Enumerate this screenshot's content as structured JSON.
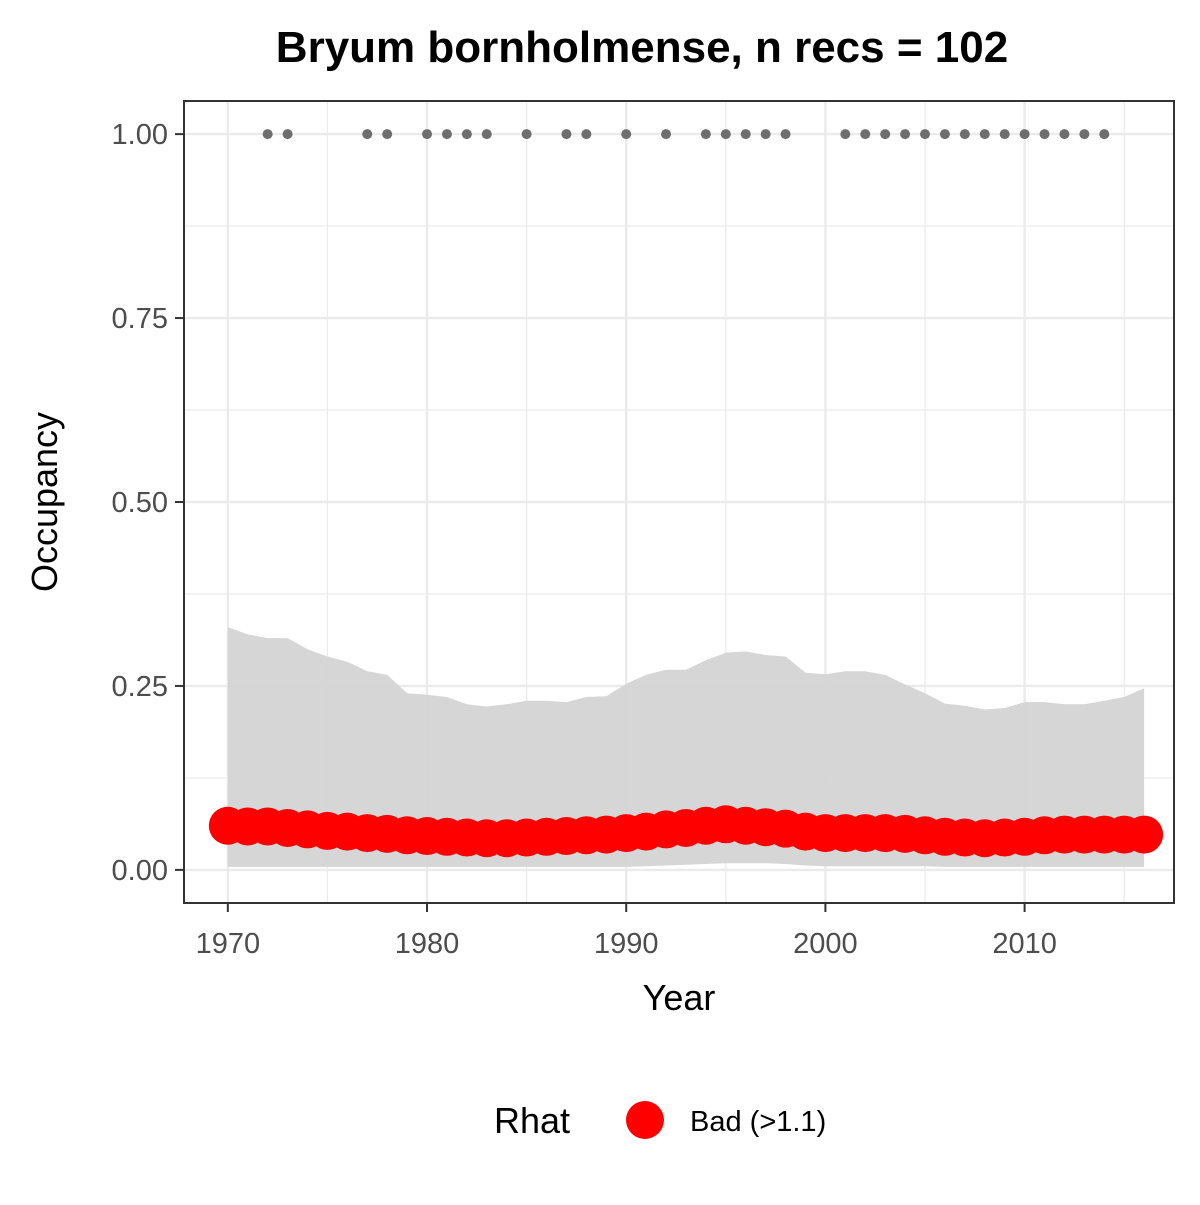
{
  "chart_data": {
    "type": "line",
    "title": "Bryum bornholmense, n recs = 102",
    "xlabel": "Year",
    "ylabel": "Occupancy",
    "xlim": [
      1967.8,
      2017.5
    ],
    "ylim": [
      -0.045,
      1.045
    ],
    "x_ticks": [
      1970,
      1980,
      1990,
      2000,
      2010
    ],
    "x_tick_labels": [
      "1970",
      "1980",
      "1990",
      "2000",
      "2010"
    ],
    "y_ticks": [
      0,
      0.25,
      0.5,
      0.75,
      1.0
    ],
    "y_tick_labels": [
      "0.00",
      "0.25",
      "0.50",
      "0.75",
      "1.00"
    ],
    "grid": true,
    "legend": {
      "position": "bottom",
      "title": "Rhat",
      "entries": [
        {
          "label": "Bad (>1.1)",
          "color": "#ff0000"
        }
      ]
    },
    "colors": {
      "ribbon": "#d4d4d4",
      "estimate": "#ff0000",
      "records": "#6e6e6e",
      "grid": "#ebebeb",
      "panel_border": "#333333"
    },
    "series": [
      {
        "kind": "ribbon",
        "x": [
          1970,
          1971,
          1972,
          1973,
          1974,
          1975,
          1976,
          1977,
          1978,
          1979,
          1980,
          1981,
          1982,
          1983,
          1984,
          1985,
          1986,
          1987,
          1988,
          1989,
          1990,
          1991,
          1992,
          1993,
          1994,
          1995,
          1996,
          1997,
          1998,
          1999,
          2000,
          2001,
          2002,
          2003,
          2004,
          2005,
          2006,
          2007,
          2008,
          2009,
          2010,
          2011,
          2012,
          2013,
          2014,
          2015,
          2016
        ],
        "upper": [
          0.33,
          0.32,
          0.315,
          0.315,
          0.3,
          0.29,
          0.283,
          0.27,
          0.265,
          0.24,
          0.238,
          0.235,
          0.225,
          0.222,
          0.225,
          0.23,
          0.23,
          0.228,
          0.235,
          0.236,
          0.253,
          0.265,
          0.272,
          0.272,
          0.285,
          0.295,
          0.297,
          0.292,
          0.29,
          0.268,
          0.266,
          0.27,
          0.27,
          0.265,
          0.252,
          0.24,
          0.226,
          0.223,
          0.218,
          0.22,
          0.228,
          0.228,
          0.225,
          0.225,
          0.23,
          0.235,
          0.247
        ],
        "lower": [
          0.004,
          0.004,
          0.004,
          0.004,
          0.004,
          0.004,
          0.004,
          0.004,
          0.004,
          0.004,
          0.004,
          0.004,
          0.004,
          0.004,
          0.004,
          0.004,
          0.004,
          0.004,
          0.004,
          0.004,
          0.004,
          0.005,
          0.006,
          0.007,
          0.008,
          0.009,
          0.009,
          0.009,
          0.008,
          0.006,
          0.005,
          0.005,
          0.005,
          0.005,
          0.005,
          0.005,
          0.004,
          0.004,
          0.004,
          0.004,
          0.004,
          0.004,
          0.004,
          0.004,
          0.004,
          0.004,
          0.004
        ]
      },
      {
        "kind": "estimate",
        "name": "Bad (>1.1)",
        "x": [
          1970,
          1971,
          1972,
          1973,
          1974,
          1975,
          1976,
          1977,
          1978,
          1979,
          1980,
          1981,
          1982,
          1983,
          1984,
          1985,
          1986,
          1987,
          1988,
          1989,
          1990,
          1991,
          1992,
          1993,
          1994,
          1995,
          1996,
          1997,
          1998,
          1999,
          2000,
          2001,
          2002,
          2003,
          2004,
          2005,
          2006,
          2007,
          2008,
          2009,
          2010,
          2011,
          2012,
          2013,
          2014,
          2015,
          2016
        ],
        "y": [
          0.06,
          0.059,
          0.059,
          0.057,
          0.055,
          0.053,
          0.052,
          0.05,
          0.049,
          0.047,
          0.046,
          0.045,
          0.044,
          0.043,
          0.043,
          0.044,
          0.045,
          0.046,
          0.047,
          0.048,
          0.05,
          0.052,
          0.055,
          0.057,
          0.06,
          0.062,
          0.06,
          0.058,
          0.056,
          0.052,
          0.05,
          0.05,
          0.05,
          0.05,
          0.049,
          0.047,
          0.045,
          0.044,
          0.043,
          0.044,
          0.045,
          0.047,
          0.048,
          0.048,
          0.048,
          0.048,
          0.048
        ]
      },
      {
        "kind": "records",
        "x": [
          1972,
          1973,
          1977,
          1978,
          1980,
          1981,
          1982,
          1983,
          1985,
          1987,
          1988,
          1990,
          1992,
          1994,
          1995,
          1996,
          1997,
          1998,
          2001,
          2002,
          2003,
          2004,
          2005,
          2006,
          2007,
          2008,
          2009,
          2010,
          2011,
          2012,
          2013,
          2014
        ],
        "y": 1.0
      }
    ]
  }
}
